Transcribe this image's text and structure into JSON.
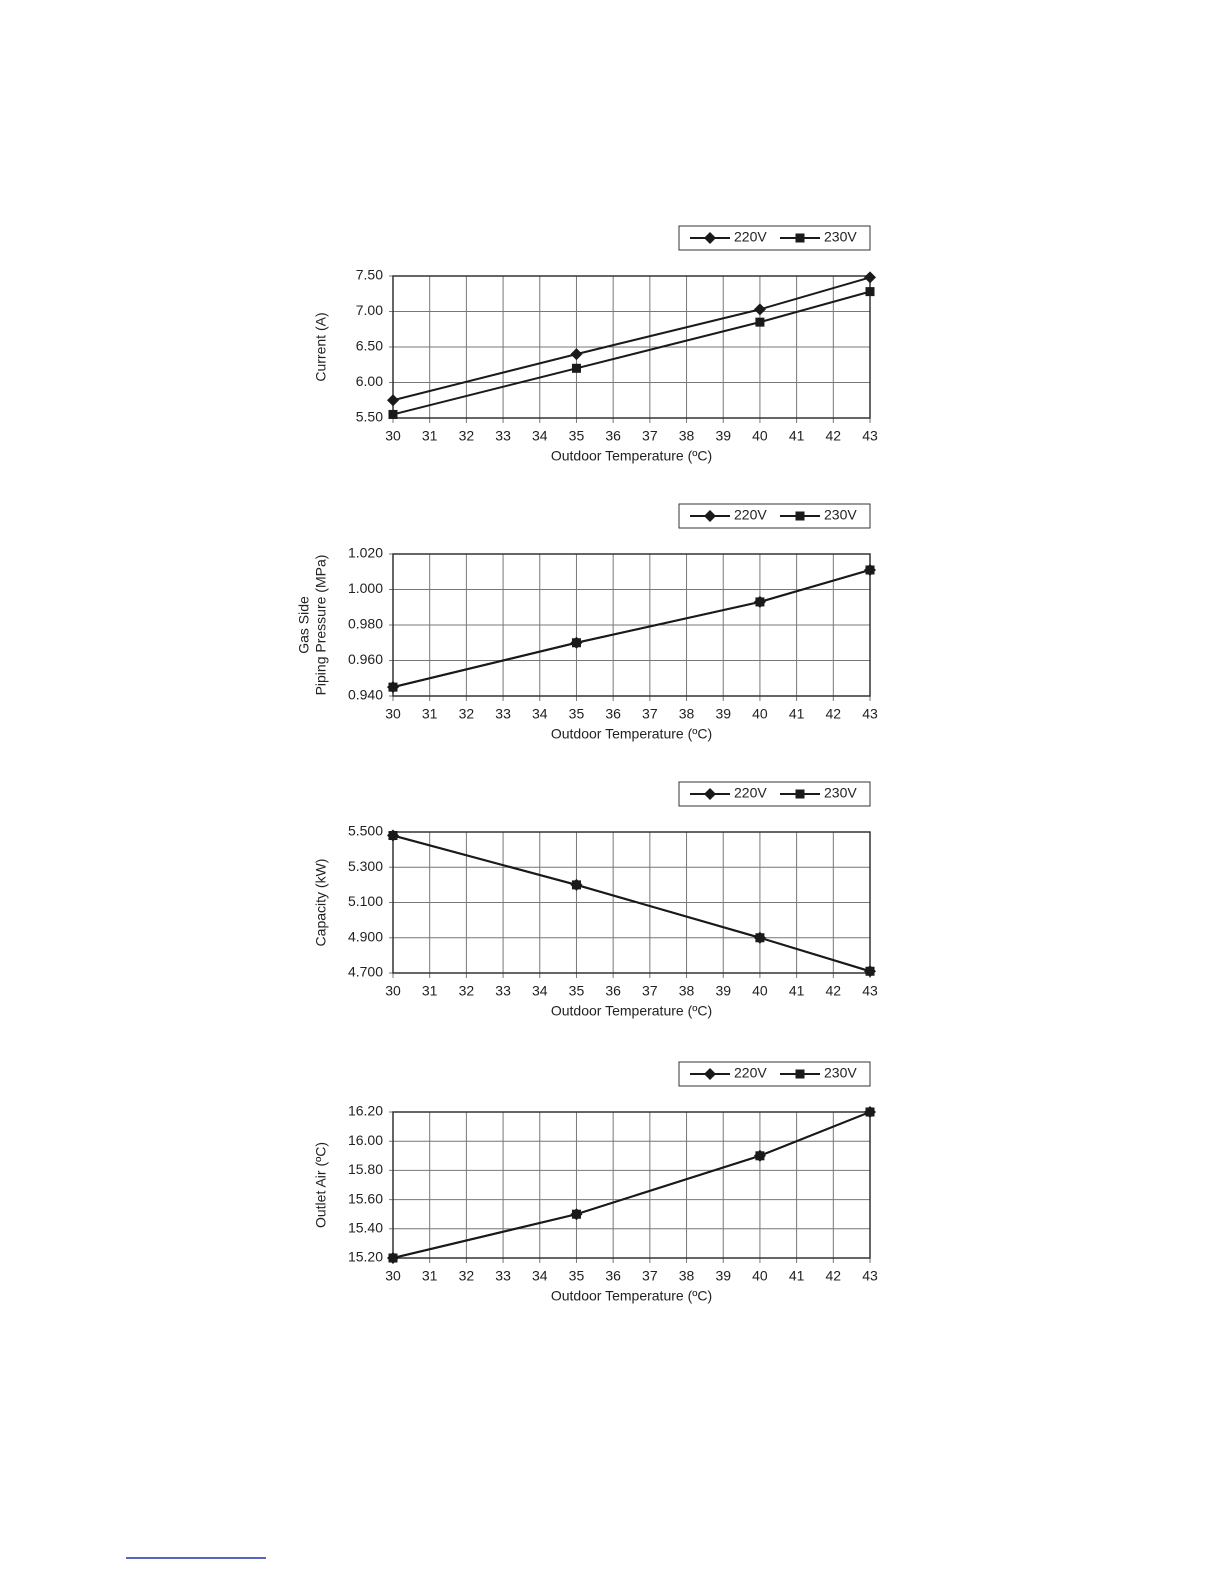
{
  "chart_data": [
    {
      "type": "line",
      "ylabel": [
        "Current (A)"
      ],
      "xlabel": "Outdoor Temperature (ºC)",
      "x": [
        30,
        35,
        40,
        43
      ],
      "xlim": [
        30,
        43
      ],
      "xticks": [
        30,
        31,
        32,
        33,
        34,
        35,
        36,
        37,
        38,
        39,
        40,
        41,
        42,
        43
      ],
      "ylim": [
        5.5,
        7.5
      ],
      "yticks": [
        {
          "value": 5.5,
          "label": "5.50"
        },
        {
          "value": 6,
          "label": "6.00"
        },
        {
          "value": 6.5,
          "label": "6.50"
        },
        {
          "value": 7,
          "label": "7.00"
        },
        {
          "value": 7.5,
          "label": "7.50"
        }
      ],
      "grid": true,
      "series": [
        {
          "name": "220V",
          "color": "#1a1a1a",
          "marker": "diamond",
          "values": [
            5.75,
            6.4,
            7.03,
            7.48
          ]
        },
        {
          "name": "230V",
          "color": "#1a1a1a",
          "marker": "square",
          "values": [
            5.55,
            6.2,
            6.85,
            7.28
          ]
        }
      ]
    },
    {
      "type": "line",
      "ylabel": [
        "Gas Side",
        "Piping Pressure (MPa)"
      ],
      "xlabel": "Outdoor Temperature (ºC)",
      "x": [
        30,
        35,
        40,
        43
      ],
      "xlim": [
        30,
        43
      ],
      "xticks": [
        30,
        31,
        32,
        33,
        34,
        35,
        36,
        37,
        38,
        39,
        40,
        41,
        42,
        43
      ],
      "ylim": [
        0.94,
        1.02
      ],
      "yticks": [
        {
          "value": 0.94,
          "label": "0.940"
        },
        {
          "value": 0.96,
          "label": "0.960"
        },
        {
          "value": 0.98,
          "label": "0.980"
        },
        {
          "value": 1.0,
          "label": "1.000"
        },
        {
          "value": 1.02,
          "label": "1.020"
        }
      ],
      "grid": true,
      "series": [
        {
          "name": "220V",
          "color": "#1a1a1a",
          "marker": "diamond",
          "values": [
            0.945,
            0.97,
            0.993,
            1.011
          ]
        },
        {
          "name": "230V",
          "color": "#1a1a1a",
          "marker": "square",
          "values": [
            0.945,
            0.97,
            0.993,
            1.011
          ]
        }
      ]
    },
    {
      "type": "line",
      "ylabel": [
        "Capacity (kW)"
      ],
      "xlabel": "Outdoor Temperature (ºC)",
      "x": [
        30,
        35,
        40,
        43
      ],
      "xlim": [
        30,
        43
      ],
      "xticks": [
        30,
        31,
        32,
        33,
        34,
        35,
        36,
        37,
        38,
        39,
        40,
        41,
        42,
        43
      ],
      "ylim": [
        4.7,
        5.5
      ],
      "yticks": [
        {
          "value": 4.7,
          "label": "4.700"
        },
        {
          "value": 4.9,
          "label": "4.900"
        },
        {
          "value": 5.1,
          "label": "5.100"
        },
        {
          "value": 5.3,
          "label": "5.300"
        },
        {
          "value": 5.5,
          "label": "5.500"
        }
      ],
      "grid": true,
      "series": [
        {
          "name": "220V",
          "color": "#1a1a1a",
          "marker": "diamond",
          "values": [
            5.48,
            5.2,
            4.9,
            4.71
          ]
        },
        {
          "name": "230V",
          "color": "#1a1a1a",
          "marker": "square",
          "values": [
            5.48,
            5.2,
            4.9,
            4.71
          ]
        }
      ]
    },
    {
      "type": "line",
      "ylabel": [
        "Outlet Air (ºC)"
      ],
      "xlabel": "Outdoor Temperature (ºC)",
      "x": [
        30,
        35,
        40,
        43
      ],
      "xlim": [
        30,
        43
      ],
      "xticks": [
        30,
        31,
        32,
        33,
        34,
        35,
        36,
        37,
        38,
        39,
        40,
        41,
        42,
        43
      ],
      "ylim": [
        15.2,
        16.2
      ],
      "yticks": [
        {
          "value": 15.2,
          "label": "15.20"
        },
        {
          "value": 15.4,
          "label": "15.40"
        },
        {
          "value": 15.6,
          "label": "15.60"
        },
        {
          "value": 15.8,
          "label": "15.80"
        },
        {
          "value": 16.0,
          "label": "16.00"
        },
        {
          "value": 16.2,
          "label": "16.20"
        }
      ],
      "grid": true,
      "series": [
        {
          "name": "220V",
          "color": "#1a1a1a",
          "marker": "diamond",
          "values": [
            15.2,
            15.5,
            15.9,
            16.2
          ]
        },
        {
          "name": "230V",
          "color": "#1a1a1a",
          "marker": "square",
          "values": [
            15.2,
            15.5,
            15.9,
            16.2
          ]
        }
      ]
    }
  ]
}
